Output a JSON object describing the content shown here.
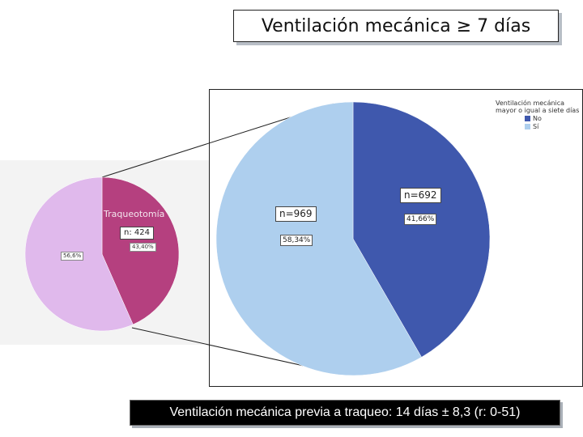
{
  "title": "Ventilación mecánica ≥ 7 días",
  "footer": "Ventilación mecánica previa a traqueo: 14 días ± 8,3 (r: 0-51)",
  "chart_data": [
    {
      "type": "pie",
      "slices": [
        {
          "label": "Traqueotomía",
          "value": 43.4,
          "pct_label": "43,40%",
          "color": "#b5407f"
        },
        {
          "label": "",
          "value": 56.6,
          "pct_label": "56,6%",
          "color": "#e0b9ec"
        }
      ],
      "annotations": [
        "n: 424"
      ]
    },
    {
      "type": "pie",
      "legend_title": "Ventilación mecánica mayor o igual a siete días",
      "legend_position": "top-right",
      "slices": [
        {
          "label": "No",
          "value": 41.66,
          "pct_label": "41,66%",
          "count_label": "n=692",
          "color": "#3f58ad"
        },
        {
          "label": "Sí",
          "value": 58.34,
          "pct_label": "58,34%",
          "count_label": "n=969",
          "color": "#aecfee"
        }
      ]
    }
  ]
}
